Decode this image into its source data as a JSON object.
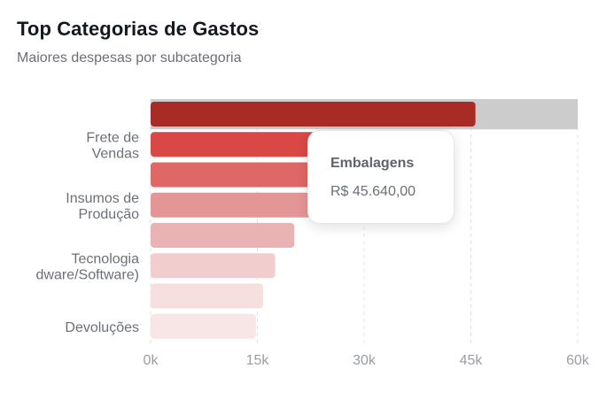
{
  "header": {
    "title": "Top Categorias de Gastos",
    "subtitle": "Maiores despesas por subcategoria"
  },
  "tooltip": {
    "label": "Embalagens",
    "value": "R$ 45.640,00"
  },
  "chart_data": {
    "type": "bar",
    "orientation": "horizontal",
    "categories": [
      "Embalagens",
      "Frete de Vendas",
      "",
      "Insumos de Produção",
      "",
      "Tecnologia (Hardware/Software)",
      "",
      "Devoluções"
    ],
    "y_tick_labels": [
      {
        "index": 1,
        "lines": [
          "Frete de",
          "Vendas"
        ]
      },
      {
        "index": 3,
        "lines": [
          "Insumos de",
          "Produção"
        ]
      },
      {
        "index": 5,
        "lines": [
          "Tecnologia",
          "dware/Software)"
        ]
      },
      {
        "index": 7,
        "lines": [
          "Devoluções"
        ]
      }
    ],
    "values": [
      45640,
      23500,
      23500,
      23500,
      20200,
      17500,
      15800,
      14800
    ],
    "colors": [
      "#a82c25",
      "#d94845",
      "#de6865",
      "#e49595",
      "#eab3b3",
      "#f1cdcd",
      "#f5dfdf",
      "#f8e6e6"
    ],
    "highlight_index": 0,
    "highlight_background": "#cccccc",
    "xlim": [
      0,
      60000
    ],
    "x_ticks": [
      0,
      15000,
      30000,
      45000,
      60000
    ],
    "x_tick_labels": [
      "0k",
      "15k",
      "30k",
      "45k",
      "60k"
    ],
    "grid": "vertical-dashed",
    "xlabel": "",
    "ylabel": "",
    "title": "Top Categorias de Gastos"
  }
}
